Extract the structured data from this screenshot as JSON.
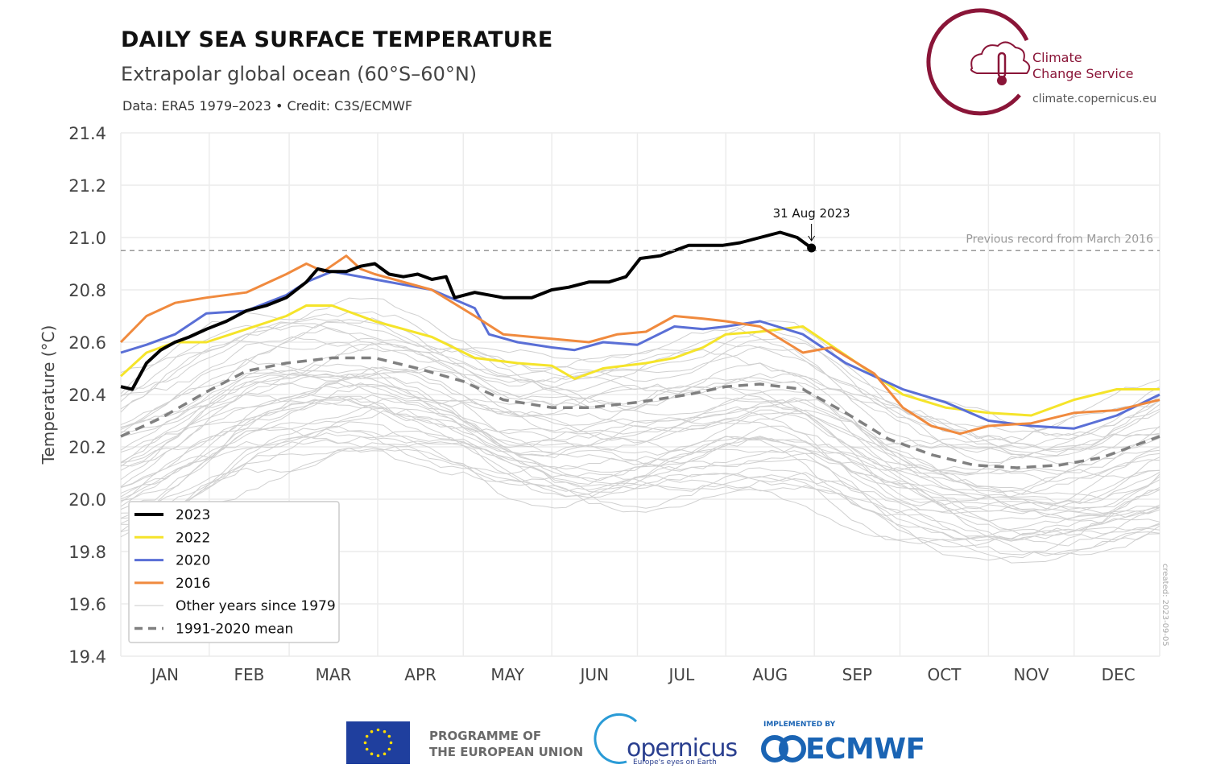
{
  "header": {
    "title": "DAILY SEA SURFACE TEMPERATURE",
    "subtitle": "Extrapolar global ocean (60°S–60°N)",
    "credit": "Data: ERA5 1979–2023 • Credit: C3S/ECMWF"
  },
  "brand": {
    "line1": "Climate",
    "line2": "Change Service",
    "url": "climate.copernicus.eu",
    "created": "created: 2023-09-05"
  },
  "footer": {
    "eu_line1": "PROGRAMME OF",
    "eu_line2": "THE EUROPEAN UNION",
    "copernicus": "opernicus",
    "copernicus_tag": "Europe's eyes on Earth",
    "implemented": "IMPLEMENTED BY",
    "ecmwf": "ECMWF"
  },
  "colors": {
    "c2023": "#000000",
    "c2022": "#f5e42a",
    "c2020": "#5a6fd6",
    "c2016": "#f08a3e",
    "other": "#d0d0d0",
    "mean": "#808080",
    "brand": "#8a1538",
    "ecmwf": "#1a64b4"
  },
  "chart_data": {
    "type": "line",
    "title": "DAILY SEA SURFACE TEMPERATURE",
    "xlabel": "",
    "ylabel": "Temperature (°C)",
    "ylim": [
      19.4,
      21.4
    ],
    "yticks": [
      "21.4",
      "21.2",
      "21.0",
      "20.8",
      "20.6",
      "20.4",
      "20.2",
      "20.0",
      "19.8",
      "19.6",
      "19.4"
    ],
    "ytick_values": [
      21.4,
      21.2,
      21.0,
      20.8,
      20.6,
      20.4,
      20.2,
      20.0,
      19.8,
      19.6,
      19.4
    ],
    "months": [
      "JAN",
      "FEB",
      "MAR",
      "APR",
      "MAY",
      "JUN",
      "JUL",
      "AUG",
      "SEP",
      "OCT",
      "NOV",
      "DEC"
    ],
    "month_start_days": [
      1,
      32,
      60,
      91,
      121,
      152,
      182,
      213,
      244,
      274,
      305,
      335
    ],
    "record": {
      "value": 20.95,
      "label": "Previous record from March 2016"
    },
    "annotation": {
      "label": "31 Aug 2023",
      "day": 243,
      "value": 20.96
    },
    "legend": {
      "placement": "bottom-left",
      "entries": [
        {
          "label": "2023",
          "key": "s2023"
        },
        {
          "label": "2022",
          "key": "s2022"
        },
        {
          "label": "2020",
          "key": "s2020"
        },
        {
          "label": "2016",
          "key": "s2016"
        },
        {
          "label": "Other years since 1979",
          "key": "other"
        },
        {
          "label": "1991-2020 mean",
          "key": "mean"
        }
      ]
    },
    "series": [
      {
        "name": "2023",
        "key": "s2023",
        "days": [
          1,
          5,
          10,
          15,
          20,
          25,
          31,
          38,
          45,
          52,
          59,
          66,
          70,
          74,
          80,
          85,
          90,
          95,
          100,
          105,
          110,
          115,
          118,
          125,
          135,
          145,
          152,
          158,
          165,
          172,
          178,
          183,
          190,
          195,
          200,
          206,
          212,
          218,
          225,
          232,
          238,
          243
        ],
        "values": [
          20.43,
          20.42,
          20.52,
          20.57,
          20.6,
          20.62,
          20.65,
          20.68,
          20.72,
          20.74,
          20.77,
          20.83,
          20.88,
          20.87,
          20.87,
          20.89,
          20.9,
          20.86,
          20.85,
          20.86,
          20.84,
          20.85,
          20.77,
          20.79,
          20.77,
          20.77,
          20.8,
          20.81,
          20.83,
          20.83,
          20.85,
          20.92,
          20.93,
          20.95,
          20.97,
          20.97,
          20.97,
          20.98,
          21.0,
          21.02,
          21.0,
          20.96
        ]
      },
      {
        "name": "2022",
        "key": "s2022",
        "days": [
          1,
          10,
          20,
          31,
          45,
          59,
          66,
          75,
          90,
          110,
          125,
          140,
          152,
          160,
          170,
          185,
          195,
          205,
          213,
          225,
          240,
          255,
          275,
          290,
          305,
          320,
          335,
          350,
          365
        ],
        "values": [
          20.47,
          20.56,
          20.6,
          20.6,
          20.65,
          20.7,
          20.74,
          20.74,
          20.68,
          20.62,
          20.54,
          20.52,
          20.51,
          20.46,
          20.5,
          20.52,
          20.54,
          20.58,
          20.63,
          20.64,
          20.66,
          20.55,
          20.4,
          20.35,
          20.33,
          20.32,
          20.38,
          20.42,
          20.42
        ]
      },
      {
        "name": "2020",
        "key": "s2020",
        "days": [
          1,
          10,
          20,
          31,
          45,
          59,
          66,
          75,
          90,
          110,
          125,
          130,
          140,
          152,
          160,
          170,
          182,
          195,
          205,
          213,
          225,
          240,
          255,
          275,
          290,
          305,
          320,
          335,
          350,
          365
        ],
        "values": [
          20.56,
          20.59,
          20.63,
          20.71,
          20.72,
          20.78,
          20.83,
          20.87,
          20.84,
          20.8,
          20.73,
          20.63,
          20.6,
          20.58,
          20.57,
          20.6,
          20.59,
          20.66,
          20.65,
          20.66,
          20.68,
          20.63,
          20.52,
          20.42,
          20.37,
          20.3,
          20.28,
          20.27,
          20.32,
          20.4
        ]
      },
      {
        "name": "2016",
        "key": "s2016",
        "days": [
          1,
          10,
          20,
          31,
          45,
          59,
          66,
          72,
          80,
          85,
          90,
          110,
          125,
          135,
          145,
          155,
          165,
          175,
          185,
          195,
          205,
          213,
          225,
          240,
          250,
          265,
          275,
          285,
          295,
          305,
          320,
          335,
          350,
          365
        ],
        "values": [
          20.6,
          20.7,
          20.75,
          20.77,
          20.79,
          20.86,
          20.9,
          20.87,
          20.93,
          20.88,
          20.86,
          20.8,
          20.7,
          20.63,
          20.62,
          20.61,
          20.6,
          20.63,
          20.64,
          20.7,
          20.69,
          20.68,
          20.66,
          20.56,
          20.58,
          20.48,
          20.35,
          20.28,
          20.25,
          20.28,
          20.29,
          20.33,
          20.34,
          20.38
        ]
      },
      {
        "name": "1991-2020 mean",
        "key": "mean",
        "days": [
          1,
          15,
          31,
          45,
          59,
          75,
          90,
          105,
          121,
          135,
          152,
          165,
          182,
          200,
          213,
          225,
          240,
          255,
          270,
          285,
          300,
          315,
          330,
          345,
          365
        ],
        "values": [
          20.24,
          20.31,
          20.41,
          20.49,
          20.52,
          20.54,
          20.54,
          20.5,
          20.45,
          20.38,
          20.35,
          20.35,
          20.37,
          20.4,
          20.43,
          20.44,
          20.42,
          20.33,
          20.23,
          20.17,
          20.13,
          20.12,
          20.13,
          20.16,
          20.24
        ]
      }
    ],
    "other_years_count": 41,
    "other_years_note": "Other years since 1979 drawn as thin grey lines"
  }
}
